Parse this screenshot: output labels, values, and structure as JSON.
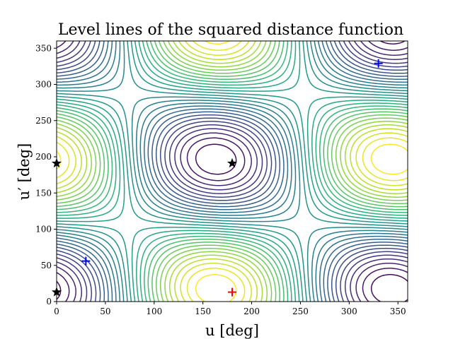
{
  "chart_data": {
    "type": "contour",
    "title": "Level lines of the squared distance function",
    "xlabel": "u [deg]",
    "ylabel": "u′ [deg]",
    "xlim": [
      0,
      360
    ],
    "ylim": [
      0,
      360
    ],
    "xticks": [
      0,
      50,
      100,
      150,
      200,
      250,
      300,
      350
    ],
    "yticks": [
      0,
      50,
      100,
      150,
      200,
      250,
      300,
      350
    ],
    "colormap": "viridis",
    "grid": false,
    "markers": [
      {
        "kind": "plus",
        "color": "#0000ff",
        "x": 30,
        "y": 56
      },
      {
        "kind": "plus",
        "color": "#0000ff",
        "x": 330,
        "y": 329
      },
      {
        "kind": "plus",
        "color": "#ff0000",
        "x": 180,
        "y": 13
      },
      {
        "kind": "star",
        "color": "#000000",
        "x": 180,
        "y": 191
      },
      {
        "kind": "star",
        "color": "#000000",
        "x": 0,
        "y": 191
      },
      {
        "kind": "star",
        "color": "#000000",
        "x": 0,
        "y": 13
      }
    ]
  }
}
